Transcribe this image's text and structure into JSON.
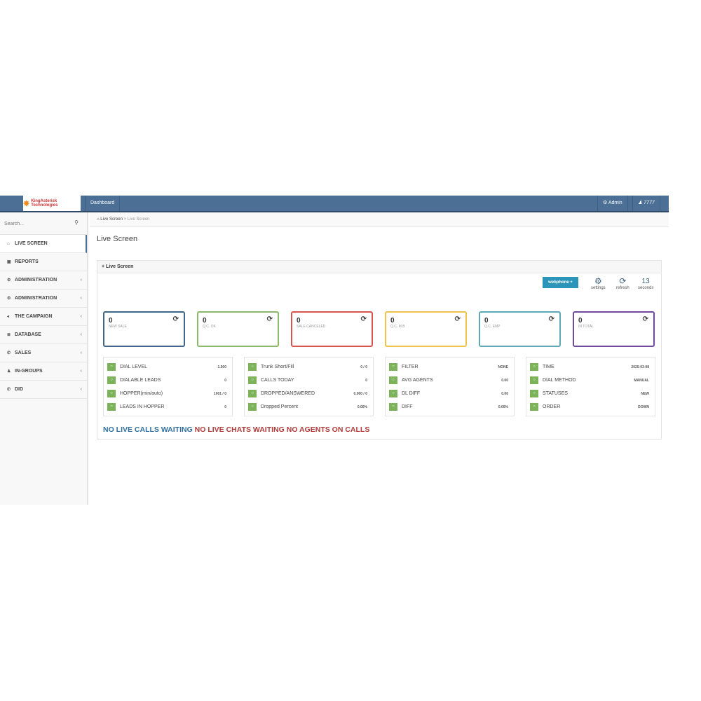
{
  "header": {
    "logo": "KingAsterisk Technologies",
    "dashboard": "Dashboard",
    "admin": "Admin",
    "user": "7777"
  },
  "sidebar": {
    "search_placeholder": "Search...",
    "items": [
      {
        "label": "LIVE SCREEN",
        "icon": "home"
      },
      {
        "label": "REPORTS",
        "icon": "image"
      },
      {
        "label": "ADMINISTRATION",
        "icon": "gear"
      },
      {
        "label": "ADMINISTRATION",
        "icon": "gear"
      },
      {
        "label": "THE CAMPAIGN",
        "icon": "bullhorn"
      },
      {
        "label": "DATABASE",
        "icon": "list"
      },
      {
        "label": "SALES",
        "icon": "phone"
      },
      {
        "label": "IN-GROUPS",
        "icon": "user"
      },
      {
        "label": "DID",
        "icon": "phone"
      }
    ]
  },
  "breadcrumb": {
    "home": "Live Screen",
    "current": "Live Screen"
  },
  "page_title": "Live Screen",
  "panel": {
    "title": "Live Screen",
    "webphone": "webphone +",
    "settings": "settings",
    "refresh": "refresh",
    "seconds_value": "13",
    "seconds_label": "seconds"
  },
  "stats": [
    {
      "value": "0",
      "label": "NEW SALE",
      "color": "#3f6589"
    },
    {
      "value": "0",
      "label": "Q.C. OK",
      "color": "#8bb86b"
    },
    {
      "value": "0",
      "label": "SALE CANCELED",
      "color": "#d9534f"
    },
    {
      "value": "0",
      "label": "Q.C. M.B",
      "color": "#f0c14b"
    },
    {
      "value": "0",
      "label": "Q.C. EMP",
      "color": "#5fa8b8"
    },
    {
      "value": "0",
      "label": "IN TOTAL",
      "color": "#6f4a9e"
    }
  ],
  "info": [
    [
      {
        "label": "DIAL LEVEL",
        "value": "1.500"
      },
      {
        "label": "DIALABLE LEADS",
        "value": "0"
      },
      {
        "label": "HOPPER(min/auto)",
        "value": "1001 / 0"
      },
      {
        "label": "LEADS IN HOPPER",
        "value": "0"
      }
    ],
    [
      {
        "label": "Trunk Short/Fill",
        "value": "0 / 0"
      },
      {
        "label": "CALLS TODAY",
        "value": "0"
      },
      {
        "label": "DROPPED/ANSWERED",
        "value": "0.000 / 0"
      },
      {
        "label": "Dropped Percent",
        "value": "0.00%"
      }
    ],
    [
      {
        "label": "FILTER",
        "value": "NONE"
      },
      {
        "label": "AVG AGENTS",
        "value": "0.00"
      },
      {
        "label": "DL DIFF",
        "value": "0.00"
      },
      {
        "label": "DIFF",
        "value": "0.00%"
      }
    ],
    [
      {
        "label": "TIME",
        "value": "2025-03-08"
      },
      {
        "label": "DIAL METHOD",
        "value": "MANUAL"
      },
      {
        "label": "STATUSES",
        "value": "NEW"
      },
      {
        "label": "ORDER",
        "value": "DOWN"
      }
    ]
  ],
  "status": {
    "calls": "NO LIVE CALLS WAITING",
    "chats": "NO LIVE CHATS WAITING",
    "agents": "NO AGENTS ON CALLS",
    "calls_color": "#2f6f9f",
    "other_color": "#b03a3a"
  }
}
